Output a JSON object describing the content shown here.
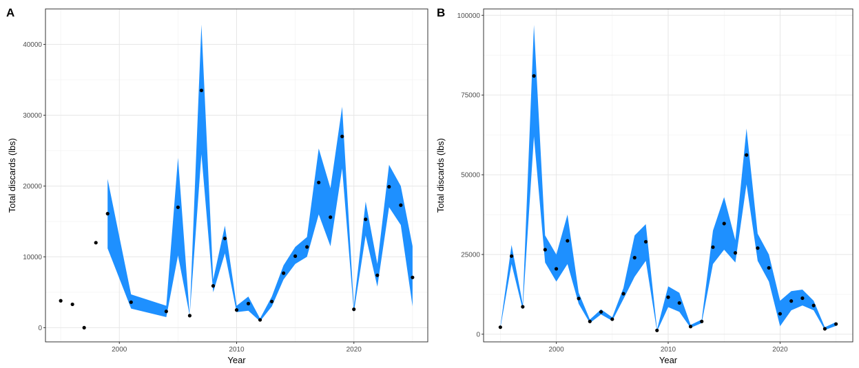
{
  "chart_data": [
    {
      "panel": "A",
      "type": "line",
      "xlabel": "Year",
      "ylabel": "Total discards (lbs)",
      "xlim": [
        1993.7,
        2026.3
      ],
      "ylim": [
        -2000,
        45000
      ],
      "xticks": [
        2000,
        2010,
        2020
      ],
      "yticks": [
        0,
        10000,
        20000,
        30000,
        40000
      ],
      "grid": true,
      "band_color": "#1E90FF",
      "point_color": "#000000",
      "points": [
        [
          1995,
          3800
        ],
        [
          1996,
          3300
        ],
        [
          1997,
          0
        ],
        [
          1998,
          12000
        ],
        [
          1999,
          16100
        ],
        [
          2001,
          3600
        ],
        [
          2004,
          2300
        ],
        [
          2005,
          17000
        ],
        [
          2006,
          1700
        ],
        [
          2007,
          33500
        ],
        [
          2008,
          5900
        ],
        [
          2009,
          12600
        ],
        [
          2010,
          2500
        ],
        [
          2011,
          3400
        ],
        [
          2012,
          1100
        ],
        [
          2013,
          3700
        ],
        [
          2014,
          7700
        ],
        [
          2015,
          10100
        ],
        [
          2016,
          11400
        ],
        [
          2017,
          20500
        ],
        [
          2018,
          15600
        ],
        [
          2019,
          27000
        ],
        [
          2020,
          2600
        ],
        [
          2021,
          15300
        ],
        [
          2022,
          7400
        ],
        [
          2023,
          19900
        ],
        [
          2024,
          17300
        ],
        [
          2025,
          7100
        ]
      ],
      "band": [
        [
          1999,
          11200,
          21000
        ],
        [
          2001,
          2700,
          4700
        ],
        [
          2004,
          1500,
          3100
        ],
        [
          2005,
          10200,
          24000
        ],
        [
          2006,
          1700,
          1700
        ],
        [
          2007,
          24500,
          42800
        ],
        [
          2008,
          5000,
          6800
        ],
        [
          2009,
          10500,
          14400
        ],
        [
          2010,
          2200,
          3100
        ],
        [
          2011,
          2400,
          4400
        ],
        [
          2012,
          900,
          1300
        ],
        [
          2013,
          3000,
          4400
        ],
        [
          2014,
          6800,
          8800
        ],
        [
          2015,
          9000,
          11400
        ],
        [
          2016,
          10000,
          12800
        ],
        [
          2017,
          16000,
          25300
        ],
        [
          2018,
          11500,
          19700
        ],
        [
          2019,
          22500,
          31200
        ],
        [
          2020,
          2200,
          3000
        ],
        [
          2021,
          13000,
          17800
        ],
        [
          2022,
          5800,
          9000
        ],
        [
          2023,
          17000,
          23000
        ],
        [
          2024,
          14500,
          20000
        ],
        [
          2025,
          3000,
          11500
        ]
      ]
    },
    {
      "panel": "B",
      "type": "line",
      "xlabel": "Year",
      "ylabel": "Total discards (lbs)",
      "xlim": [
        1993.5,
        2026.5
      ],
      "ylim": [
        -2400,
        102000
      ],
      "xticks": [
        2000,
        2010,
        2020
      ],
      "yticks": [
        0,
        25000,
        50000,
        75000,
        100000
      ],
      "grid": true,
      "band_color": "#1E90FF",
      "point_color": "#000000",
      "points": [
        [
          1995,
          2200
        ],
        [
          1996,
          24500
        ],
        [
          1997,
          8600
        ],
        [
          1998,
          81000
        ],
        [
          1999,
          26500
        ],
        [
          2000,
          20500
        ],
        [
          2001,
          29300
        ],
        [
          2002,
          11200
        ],
        [
          2003,
          4000
        ],
        [
          2004,
          7000
        ],
        [
          2005,
          4700
        ],
        [
          2006,
          12700
        ],
        [
          2007,
          24000
        ],
        [
          2008,
          29000
        ],
        [
          2009,
          1200
        ],
        [
          2010,
          11600
        ],
        [
          2011,
          9800
        ],
        [
          2012,
          2400
        ],
        [
          2013,
          4000
        ],
        [
          2014,
          27300
        ],
        [
          2015,
          34700
        ],
        [
          2016,
          25500
        ],
        [
          2017,
          56200
        ],
        [
          2018,
          27000
        ],
        [
          2019,
          20800
        ],
        [
          2020,
          6400
        ],
        [
          2021,
          10400
        ],
        [
          2022,
          11300
        ],
        [
          2023,
          9000
        ],
        [
          2024,
          1700
        ],
        [
          2025,
          3200
        ]
      ],
      "band": [
        [
          1995,
          2000,
          2500
        ],
        [
          1996,
          22000,
          28000
        ],
        [
          1997,
          7800,
          9500
        ],
        [
          1998,
          62000,
          97000
        ],
        [
          1999,
          22500,
          31000
        ],
        [
          2000,
          16500,
          25000
        ],
        [
          2001,
          22000,
          37500
        ],
        [
          2002,
          9500,
          13000
        ],
        [
          2003,
          3500,
          4600
        ],
        [
          2004,
          6200,
          7800
        ],
        [
          2005,
          4200,
          5300
        ],
        [
          2006,
          11000,
          14500
        ],
        [
          2007,
          18000,
          31000
        ],
        [
          2008,
          23000,
          34500
        ],
        [
          2009,
          900,
          1500
        ],
        [
          2010,
          8500,
          15000
        ],
        [
          2011,
          7000,
          13000
        ],
        [
          2012,
          2000,
          2900
        ],
        [
          2013,
          3500,
          4600
        ],
        [
          2014,
          22000,
          32500
        ],
        [
          2015,
          26500,
          43000
        ],
        [
          2016,
          22500,
          29500
        ],
        [
          2017,
          47000,
          64500
        ],
        [
          2018,
          23000,
          31500
        ],
        [
          2019,
          16500,
          25000
        ],
        [
          2020,
          2500,
          10500
        ],
        [
          2021,
          7500,
          13500
        ],
        [
          2022,
          9000,
          14000
        ],
        [
          2023,
          7500,
          10500
        ],
        [
          2024,
          1300,
          2200
        ],
        [
          2025,
          2600,
          3800
        ]
      ]
    }
  ]
}
